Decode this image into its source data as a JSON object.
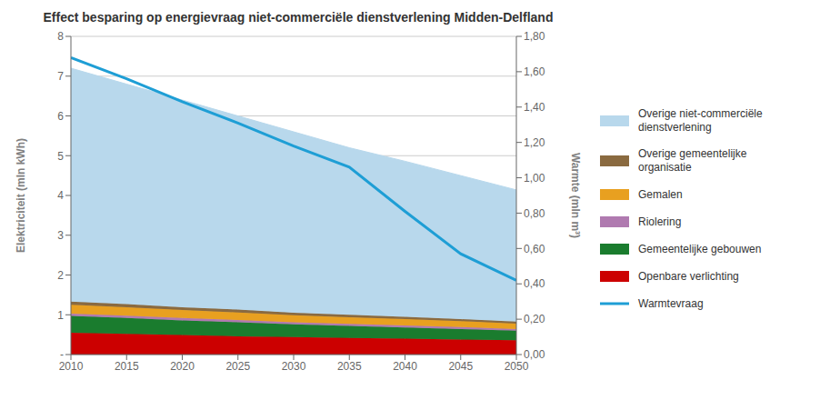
{
  "chart_data": {
    "type": "area",
    "title": "Effect besparing op energievraag niet-commerciële dienstverlening Midden-Delfland",
    "stacked": true,
    "grid": true,
    "legend": "right",
    "x": [
      2010,
      2015,
      2020,
      2025,
      2030,
      2035,
      2040,
      2045,
      2050
    ],
    "xlim": [
      2010,
      2050
    ],
    "xticks": [
      2010,
      2015,
      2020,
      2025,
      2030,
      2035,
      2040,
      2045,
      2050
    ],
    "ylabel": "Elektriciteit (mln kWh)",
    "ylim": [
      0,
      8
    ],
    "yticks": [
      {
        "value": 0,
        "label": "-"
      },
      1,
      2,
      3,
      4,
      5,
      6,
      7,
      8
    ],
    "y2label": "Warmte (mln m³)",
    "y2lim": [
      0,
      1.8
    ],
    "y2ticks": [
      {
        "value": 0,
        "label": "0,00"
      },
      {
        "value": 0.2,
        "label": "0,20"
      },
      {
        "value": 0.4,
        "label": "0,40"
      },
      {
        "value": 0.6,
        "label": "0,60"
      },
      {
        "value": 0.8,
        "label": "0,80"
      },
      {
        "value": 1,
        "label": "1,00"
      },
      {
        "value": 1.2,
        "label": "1,20"
      },
      {
        "value": 1.4,
        "label": "1,40"
      },
      {
        "value": 1.6,
        "label": "1,60"
      },
      {
        "value": 1.8,
        "label": "1,80"
      }
    ],
    "series": [
      {
        "name": "Openbare verlichting",
        "type": "area",
        "color": "#cc0000",
        "values": [
          0.55,
          0.52,
          0.49,
          0.46,
          0.44,
          0.42,
          0.4,
          0.38,
          0.36
        ]
      },
      {
        "name": "Gemeentelijke gebouwen",
        "type": "area",
        "color": "#1a7c2e",
        "values": [
          0.42,
          0.4,
          0.37,
          0.35,
          0.32,
          0.3,
          0.28,
          0.26,
          0.24
        ]
      },
      {
        "name": "Riolering",
        "type": "area",
        "color": "#b07ab0",
        "values": [
          0.06,
          0.06,
          0.06,
          0.06,
          0.05,
          0.05,
          0.05,
          0.05,
          0.04
        ]
      },
      {
        "name": "Gemalen",
        "type": "area",
        "color": "#e8a020",
        "values": [
          0.22,
          0.21,
          0.2,
          0.19,
          0.18,
          0.17,
          0.16,
          0.15,
          0.14
        ]
      },
      {
        "name": "Overige gemeentelijke\norganisatie",
        "type": "area",
        "color": "#8a6a40",
        "values": [
          0.08,
          0.08,
          0.07,
          0.07,
          0.06,
          0.06,
          0.06,
          0.05,
          0.05
        ]
      },
      {
        "name": "Overige niet-commerciële\ndienstverlening",
        "type": "area",
        "color": "#b8d8ec",
        "values": [
          5.87,
          5.53,
          5.21,
          4.87,
          4.55,
          4.2,
          3.91,
          3.61,
          3.31
        ]
      },
      {
        "name": "Warmtevraag",
        "type": "line",
        "axis": "y2",
        "color": "#1e9ed5",
        "values": [
          1.68,
          1.56,
          1.43,
          1.31,
          1.18,
          1.06,
          0.81,
          0.57,
          0.42
        ]
      }
    ]
  }
}
